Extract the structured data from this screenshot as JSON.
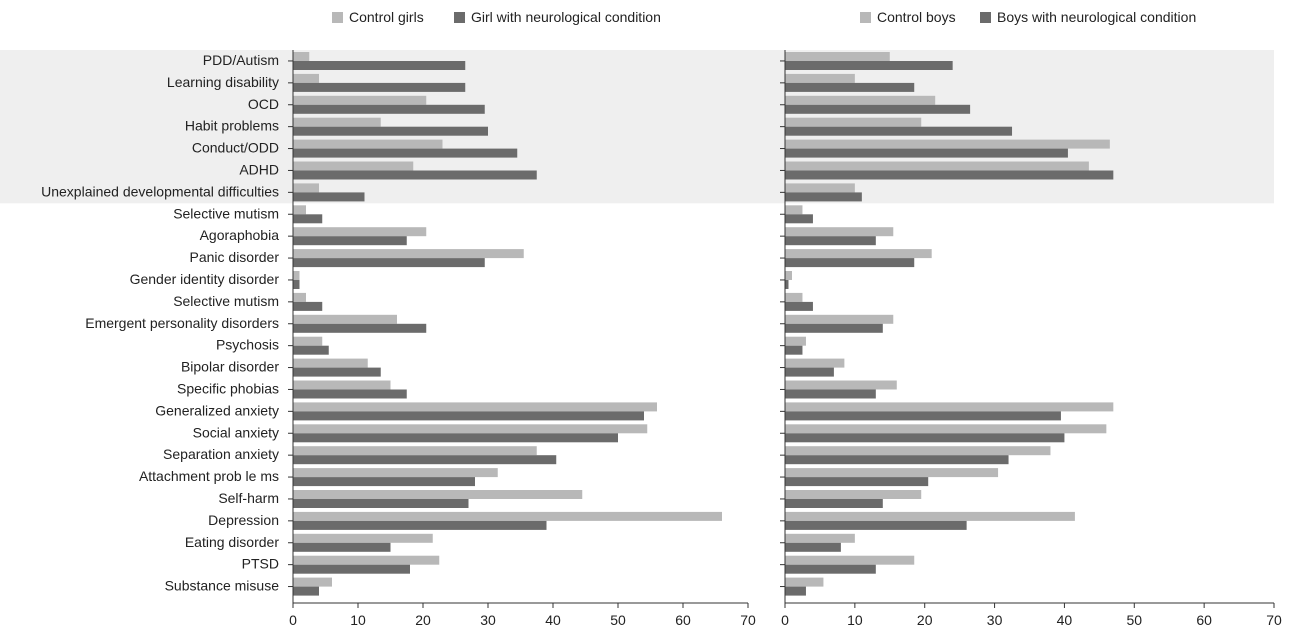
{
  "colors": {
    "control": "#b8b8b8",
    "condition": "#6b6b6b",
    "highlight": "#efefef",
    "axis": "#333333",
    "text": "#222222"
  },
  "chart_data": [
    {
      "type": "bar",
      "orientation": "horizontal",
      "categories": [
        "PDD/Autism",
        "Learning disability",
        "OCD",
        "Habit problems",
        "Conduct/ODD",
        "ADHD",
        "Unexplained developmental difficulties",
        "Selective mutism",
        "Agoraphobia",
        "Panic disorder",
        "Gender identity disorder",
        "Selective mutism",
        "Emergent personality disorders",
        "Psychosis",
        "Bipolar disorder",
        "Specific phobias",
        "Generalized anxiety",
        "Social anxiety",
        "Separation anxiety",
        "Attachment prob le ms",
        "Self-harm",
        "Depression",
        "Eating disorder",
        "PTSD",
        "Substance misuse"
      ],
      "series": [
        {
          "name": "Control girls",
          "values": [
            2.5,
            4,
            20.5,
            13.5,
            23,
            18.5,
            4,
            2,
            20.5,
            35.5,
            1,
            2,
            16,
            4.5,
            11.5,
            15,
            56,
            54.5,
            37.5,
            31.5,
            44.5,
            66,
            21.5,
            22.5,
            6
          ]
        },
        {
          "name": "Girl with neurological condition",
          "values": [
            26.5,
            26.5,
            29.5,
            30,
            34.5,
            37.5,
            11,
            4.5,
            17.5,
            29.5,
            1,
            4.5,
            20.5,
            5.5,
            13.5,
            17.5,
            54,
            50,
            40.5,
            28,
            27,
            39,
            15,
            18,
            4
          ]
        }
      ],
      "xlim": [
        0,
        70
      ],
      "xticks": [
        0,
        10,
        20,
        30,
        40,
        50,
        60,
        70
      ],
      "highlighted_categories": 7,
      "legend": "top"
    },
    {
      "type": "bar",
      "orientation": "horizontal",
      "categories": [
        "PDD/Autism",
        "Learning disability",
        "OCD",
        "Habit problems",
        "Conduct/ODD",
        "ADHD",
        "Unexplained developmental difficulties",
        "Selective mutism",
        "Agoraphobia",
        "Panic disorder",
        "Gender identity disorder",
        "Selective mutism",
        "Emergent personality disorders",
        "Psychosis",
        "Bipolar disorder",
        "Specific phobias",
        "Generalized anxiety",
        "Social anxiety",
        "Separation anxiety",
        "Attachment prob le ms",
        "Self-harm",
        "Depression",
        "Eating disorder",
        "PTSD",
        "Substance misuse"
      ],
      "series": [
        {
          "name": "Control boys",
          "values": [
            15,
            10,
            21.5,
            19.5,
            46.5,
            43.5,
            10,
            2.5,
            15.5,
            21,
            1,
            2.5,
            15.5,
            3,
            8.5,
            16,
            47,
            46,
            38,
            30.5,
            19.5,
            41.5,
            10,
            18.5,
            5.5
          ]
        },
        {
          "name": "Boys with neurological condition",
          "values": [
            24,
            18.5,
            26.5,
            32.5,
            40.5,
            47,
            11,
            4,
            13,
            18.5,
            0.5,
            4,
            14,
            2.5,
            7,
            13,
            39.5,
            40,
            32,
            20.5,
            14,
            26,
            8,
            13,
            3
          ]
        }
      ],
      "xlim": [
        0,
        70
      ],
      "xticks": [
        0,
        10,
        20,
        30,
        40,
        50,
        60,
        70
      ],
      "highlighted_categories": 7,
      "legend": "top"
    }
  ]
}
